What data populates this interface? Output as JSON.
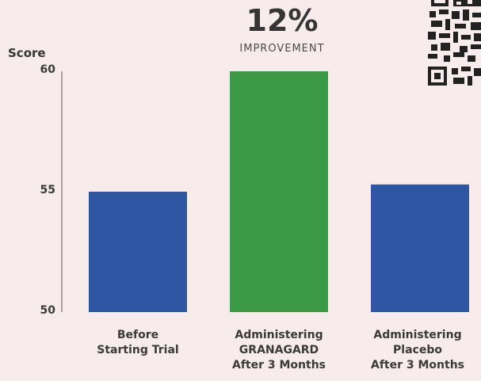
{
  "headline": {
    "value": "12%",
    "caption": "IMPROVEMENT"
  },
  "chart_data": {
    "type": "bar",
    "ylabel": "Score",
    "ylim": [
      50,
      60
    ],
    "yticks": [
      50,
      55,
      60
    ],
    "categories": [
      "Before\nStarting Trial",
      "Administering\nGRANAGARD\nAfter 3 Months",
      "Administering\nPlacebo\nAfter 3 Months"
    ],
    "values": [
      55,
      60,
      55.3
    ],
    "colors": [
      "#2e56a3",
      "#3a9a45",
      "#2e56a3"
    ]
  },
  "qr_code": {
    "icon": "qr-code-icon"
  }
}
